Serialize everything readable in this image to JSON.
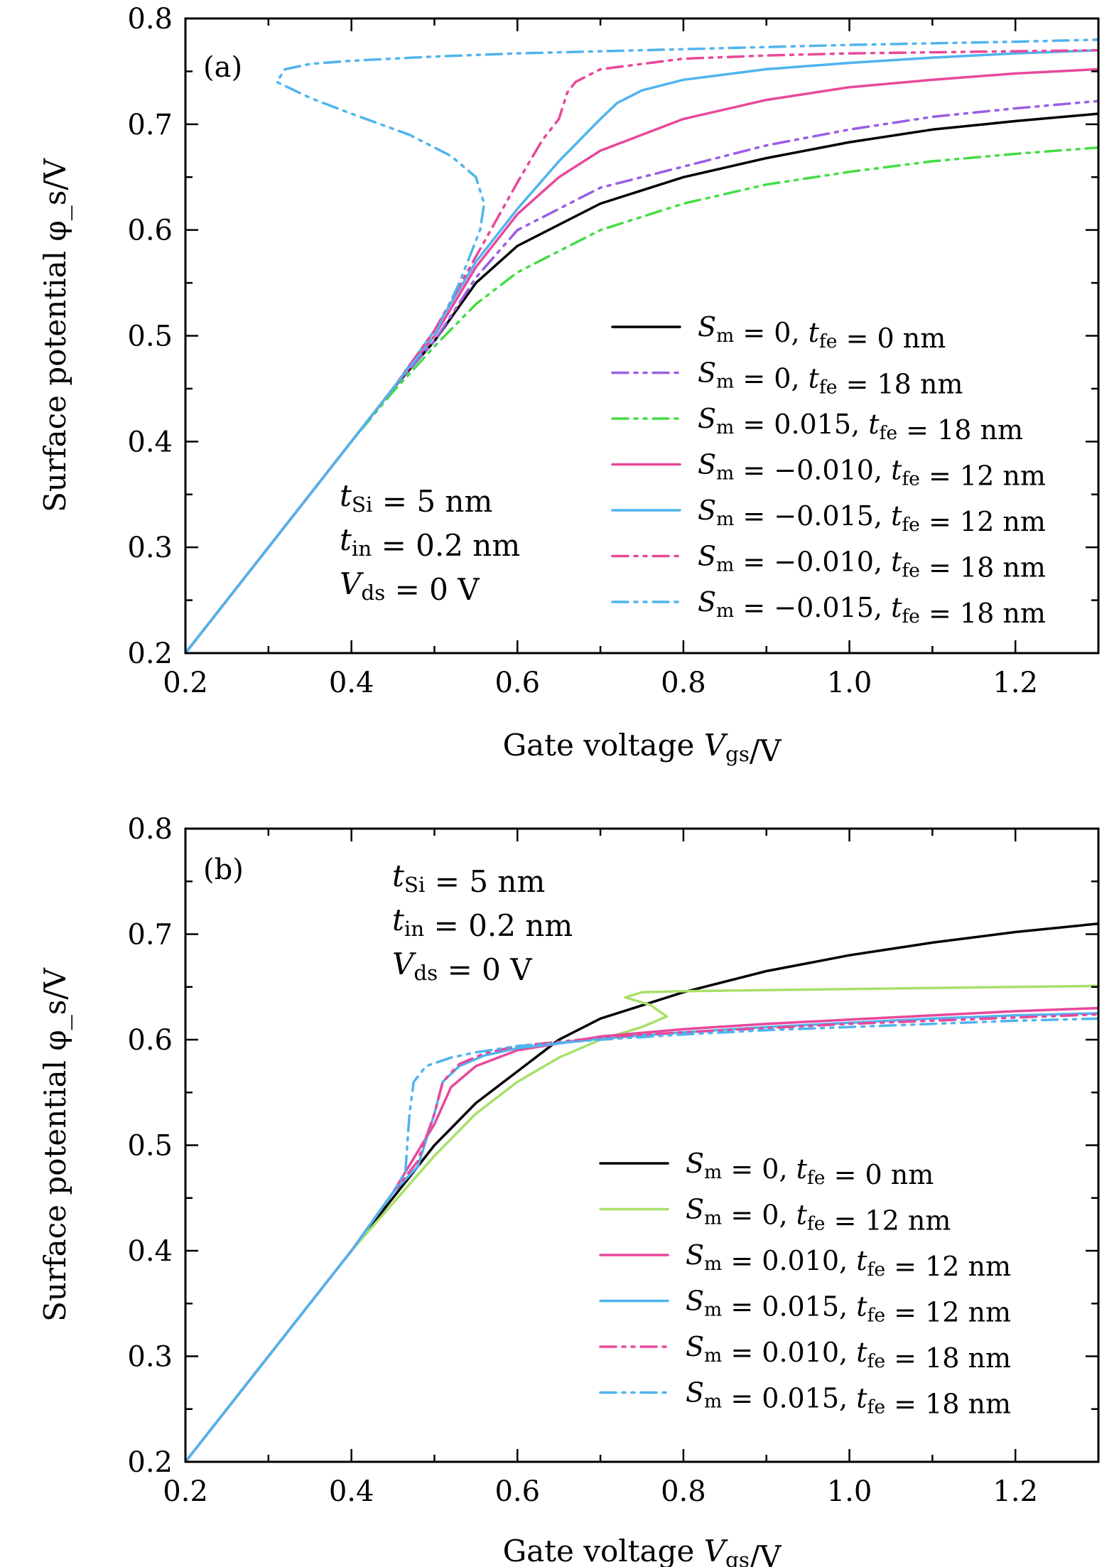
{
  "chart_data": [
    {
      "type": "line",
      "panel_label": "(a)",
      "xlabel": "Gate voltage V_gs/V",
      "ylabel": "Surface potential φ_s/V",
      "xlim": [
        0.2,
        1.3
      ],
      "ylim": [
        0.2,
        0.8
      ],
      "xticks": [
        "0.2",
        "0.4",
        "0.6",
        "0.8",
        "1.0",
        "1.2"
      ],
      "yticks": [
        "0.2",
        "0.3",
        "0.4",
        "0.5",
        "0.6",
        "0.7",
        "0.8"
      ],
      "grid": false,
      "legend_position": "lower-right",
      "annotations": [
        "t_Si = 5 nm",
        "t_in = 0.2 nm",
        "V_ds = 0 V"
      ],
      "series": [
        {
          "name": "S_m = 0, t_fe = 0 nm",
          "color": "#000000",
          "dash": "solid",
          "x": [
            0.2,
            0.3,
            0.4,
            0.45,
            0.5,
            0.55,
            0.6,
            0.7,
            0.8,
            0.9,
            1.0,
            1.1,
            1.2,
            1.3
          ],
          "y": [
            0.2,
            0.3,
            0.4,
            0.45,
            0.495,
            0.55,
            0.585,
            0.625,
            0.65,
            0.668,
            0.683,
            0.695,
            0.703,
            0.71
          ]
        },
        {
          "name": "S_m = 0, t_fe = 18 nm",
          "color": "#9b5de5",
          "dash": "dashdotdot",
          "x": [
            0.2,
            0.3,
            0.4,
            0.45,
            0.5,
            0.55,
            0.6,
            0.7,
            0.8,
            0.9,
            1.0,
            1.1,
            1.2,
            1.3
          ],
          "y": [
            0.2,
            0.3,
            0.4,
            0.45,
            0.495,
            0.555,
            0.6,
            0.64,
            0.66,
            0.68,
            0.695,
            0.707,
            0.715,
            0.722
          ]
        },
        {
          "name": "S_m = 0.015, t_fe = 18 nm",
          "color": "#44dd44",
          "dash": "dashdotdot",
          "x": [
            0.2,
            0.3,
            0.4,
            0.45,
            0.5,
            0.55,
            0.6,
            0.7,
            0.8,
            0.9,
            1.0,
            1.1,
            1.2,
            1.3
          ],
          "y": [
            0.2,
            0.3,
            0.4,
            0.447,
            0.49,
            0.53,
            0.56,
            0.6,
            0.625,
            0.643,
            0.655,
            0.665,
            0.672,
            0.678
          ]
        },
        {
          "name": "S_m = −0.010, t_fe = 12 nm",
          "color": "#e8489a",
          "dash": "solid",
          "x": [
            0.2,
            0.3,
            0.4,
            0.45,
            0.5,
            0.55,
            0.6,
            0.65,
            0.7,
            0.8,
            0.9,
            1.0,
            1.1,
            1.2,
            1.3
          ],
          "y": [
            0.2,
            0.3,
            0.4,
            0.45,
            0.5,
            0.565,
            0.615,
            0.65,
            0.675,
            0.705,
            0.723,
            0.735,
            0.742,
            0.748,
            0.752
          ]
        },
        {
          "name": "S_m = −0.015, t_fe = 12 nm",
          "color": "#4fb4ee",
          "dash": "solid",
          "x": [
            0.2,
            0.3,
            0.4,
            0.45,
            0.5,
            0.55,
            0.6,
            0.65,
            0.7,
            0.72,
            0.75,
            0.8,
            0.9,
            1.0,
            1.1,
            1.2,
            1.3
          ],
          "y": [
            0.2,
            0.3,
            0.4,
            0.45,
            0.505,
            0.57,
            0.62,
            0.665,
            0.705,
            0.72,
            0.732,
            0.742,
            0.752,
            0.758,
            0.763,
            0.767,
            0.77
          ]
        },
        {
          "name": "S_m = −0.010, t_fe = 18 nm",
          "color": "#e8489a",
          "dash": "dashdotdot",
          "x": [
            0.2,
            0.3,
            0.4,
            0.45,
            0.5,
            0.55,
            0.6,
            0.63,
            0.65,
            0.66,
            0.67,
            0.7,
            0.8,
            0.9,
            1.0,
            1.1,
            1.2,
            1.3
          ],
          "y": [
            0.2,
            0.3,
            0.4,
            0.45,
            0.505,
            0.575,
            0.645,
            0.685,
            0.705,
            0.73,
            0.74,
            0.752,
            0.762,
            0.765,
            0.767,
            0.768,
            0.769,
            0.77
          ]
        },
        {
          "name": "S_m = −0.015, t_fe = 18 nm",
          "color": "#4fb4ee",
          "dash": "dashdotdot",
          "x": [
            0.2,
            0.3,
            0.4,
            0.45,
            0.5,
            0.53,
            0.555,
            0.56,
            0.55,
            0.52,
            0.47,
            0.4,
            0.35,
            0.31,
            0.32,
            0.35,
            0.4,
            0.5,
            0.6,
            0.8,
            1.0,
            1.2,
            1.3
          ],
          "y": [
            0.2,
            0.3,
            0.4,
            0.45,
            0.5,
            0.55,
            0.6,
            0.625,
            0.65,
            0.67,
            0.69,
            0.71,
            0.725,
            0.74,
            0.752,
            0.757,
            0.76,
            0.764,
            0.767,
            0.771,
            0.775,
            0.778,
            0.78
          ]
        }
      ]
    },
    {
      "type": "line",
      "panel_label": "(b)",
      "xlabel": "Gate voltage V_gs/V",
      "ylabel": "Surface potential φ_s/V",
      "xlim": [
        0.2,
        1.3
      ],
      "ylim": [
        0.2,
        0.8
      ],
      "xticks": [
        "0.2",
        "0.4",
        "0.6",
        "0.8",
        "1.0",
        "1.2"
      ],
      "yticks": [
        "0.2",
        "0.3",
        "0.4",
        "0.5",
        "0.6",
        "0.7",
        "0.8"
      ],
      "grid": false,
      "legend_position": "lower-right",
      "annotations": [
        "t_Si = 5 nm",
        "t_in = 0.2 nm",
        "V_ds = 0 V"
      ],
      "series": [
        {
          "name": "S_m = 0, t_fe = 0 nm",
          "color": "#000000",
          "dash": "solid",
          "x": [
            0.2,
            0.3,
            0.4,
            0.45,
            0.5,
            0.55,
            0.6,
            0.65,
            0.7,
            0.8,
            0.9,
            1.0,
            1.1,
            1.2,
            1.3
          ],
          "y": [
            0.2,
            0.3,
            0.4,
            0.45,
            0.5,
            0.54,
            0.57,
            0.6,
            0.62,
            0.645,
            0.665,
            0.68,
            0.692,
            0.702,
            0.71
          ]
        },
        {
          "name": "S_m = 0, t_fe = 12 nm",
          "color": "#a8e06a",
          "dash": "solid",
          "x": [
            0.2,
            0.3,
            0.4,
            0.45,
            0.5,
            0.55,
            0.6,
            0.65,
            0.7,
            0.75,
            0.78,
            0.76,
            0.73,
            0.75,
            0.8,
            0.9,
            1.0,
            1.1,
            1.2,
            1.3
          ],
          "y": [
            0.2,
            0.3,
            0.4,
            0.445,
            0.49,
            0.53,
            0.56,
            0.583,
            0.6,
            0.612,
            0.622,
            0.633,
            0.64,
            0.645,
            0.646,
            0.647,
            0.648,
            0.649,
            0.65,
            0.651
          ]
        },
        {
          "name": "S_m = 0.010, t_fe = 12 nm",
          "color": "#e8489a",
          "dash": "solid",
          "x": [
            0.2,
            0.3,
            0.4,
            0.45,
            0.5,
            0.52,
            0.55,
            0.6,
            0.7,
            0.8,
            0.9,
            1.0,
            1.1,
            1.2,
            1.3
          ],
          "y": [
            0.2,
            0.3,
            0.4,
            0.455,
            0.52,
            0.555,
            0.575,
            0.59,
            0.603,
            0.61,
            0.615,
            0.619,
            0.623,
            0.627,
            0.63
          ]
        },
        {
          "name": "S_m = 0.015, t_fe = 12 nm",
          "color": "#4fb4ee",
          "dash": "solid",
          "x": [
            0.2,
            0.3,
            0.4,
            0.45,
            0.48,
            0.5,
            0.51,
            0.53,
            0.56,
            0.6,
            0.7,
            0.8,
            0.9,
            1.0,
            1.1,
            1.2,
            1.3
          ],
          "y": [
            0.2,
            0.3,
            0.4,
            0.455,
            0.48,
            0.53,
            0.56,
            0.575,
            0.585,
            0.592,
            0.601,
            0.607,
            0.612,
            0.616,
            0.62,
            0.623,
            0.625
          ]
        },
        {
          "name": "S_m = 0.010, t_fe = 18 nm",
          "color": "#e8489a",
          "dash": "dashdotdot",
          "x": [
            0.2,
            0.3,
            0.4,
            0.45,
            0.48,
            0.5,
            0.51,
            0.53,
            0.56,
            0.6,
            0.7,
            0.8,
            0.9,
            1.0,
            1.1,
            1.2,
            1.3
          ],
          "y": [
            0.2,
            0.3,
            0.4,
            0.455,
            0.485,
            0.53,
            0.56,
            0.577,
            0.587,
            0.594,
            0.602,
            0.607,
            0.611,
            0.615,
            0.618,
            0.621,
            0.624
          ]
        },
        {
          "name": "S_m = 0.015, t_fe = 18 nm",
          "color": "#4fb4ee",
          "dash": "dashdotdot",
          "x": [
            0.2,
            0.3,
            0.4,
            0.45,
            0.465,
            0.47,
            0.475,
            0.49,
            0.52,
            0.55,
            0.6,
            0.7,
            0.8,
            0.9,
            1.0,
            1.1,
            1.2,
            1.3
          ],
          "y": [
            0.2,
            0.3,
            0.4,
            0.455,
            0.475,
            0.53,
            0.56,
            0.575,
            0.583,
            0.588,
            0.594,
            0.6,
            0.605,
            0.609,
            0.612,
            0.615,
            0.618,
            0.62
          ]
        }
      ]
    }
  ]
}
